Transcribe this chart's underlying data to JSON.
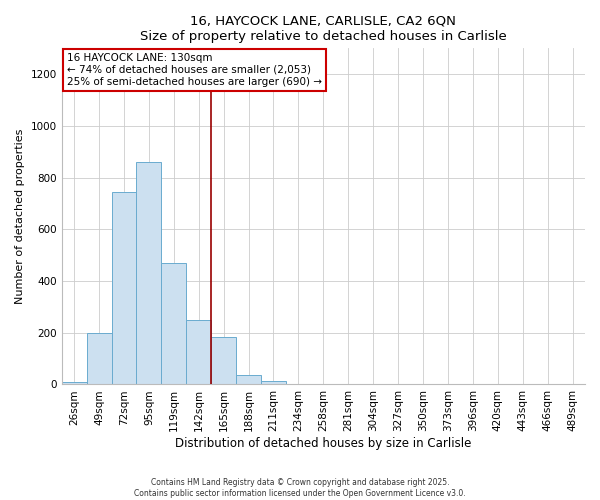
{
  "title": "16, HAYCOCK LANE, CARLISLE, CA2 6QN",
  "subtitle": "Size of property relative to detached houses in Carlisle",
  "xlabel": "Distribution of detached houses by size in Carlisle",
  "ylabel": "Number of detached properties",
  "bar_color": "#cce0f0",
  "bar_edge_color": "#6aabcf",
  "background_color": "#ffffff",
  "plot_bg_color": "#ffffff",
  "grid_color": "#cccccc",
  "categories": [
    "26sqm",
    "49sqm",
    "72sqm",
    "95sqm",
    "119sqm",
    "142sqm",
    "165sqm",
    "188sqm",
    "211sqm",
    "234sqm",
    "258sqm",
    "281sqm",
    "304sqm",
    "327sqm",
    "350sqm",
    "373sqm",
    "396sqm",
    "420sqm",
    "443sqm",
    "466sqm",
    "489sqm"
  ],
  "values": [
    10,
    200,
    745,
    860,
    470,
    250,
    185,
    35,
    15,
    0,
    0,
    0,
    0,
    0,
    0,
    0,
    0,
    0,
    0,
    0,
    0
  ],
  "vline_x": 5.5,
  "vline_color": "#990000",
  "ylim": [
    0,
    1300
  ],
  "yticks": [
    0,
    200,
    400,
    600,
    800,
    1000,
    1200
  ],
  "annotation_title": "16 HAYCOCK LANE: 130sqm",
  "annotation_line1": "← 74% of detached houses are smaller (2,053)",
  "annotation_line2": "25% of semi-detached houses are larger (690) →",
  "footer1": "Contains HM Land Registry data © Crown copyright and database right 2025.",
  "footer2": "Contains public sector information licensed under the Open Government Licence v3.0."
}
